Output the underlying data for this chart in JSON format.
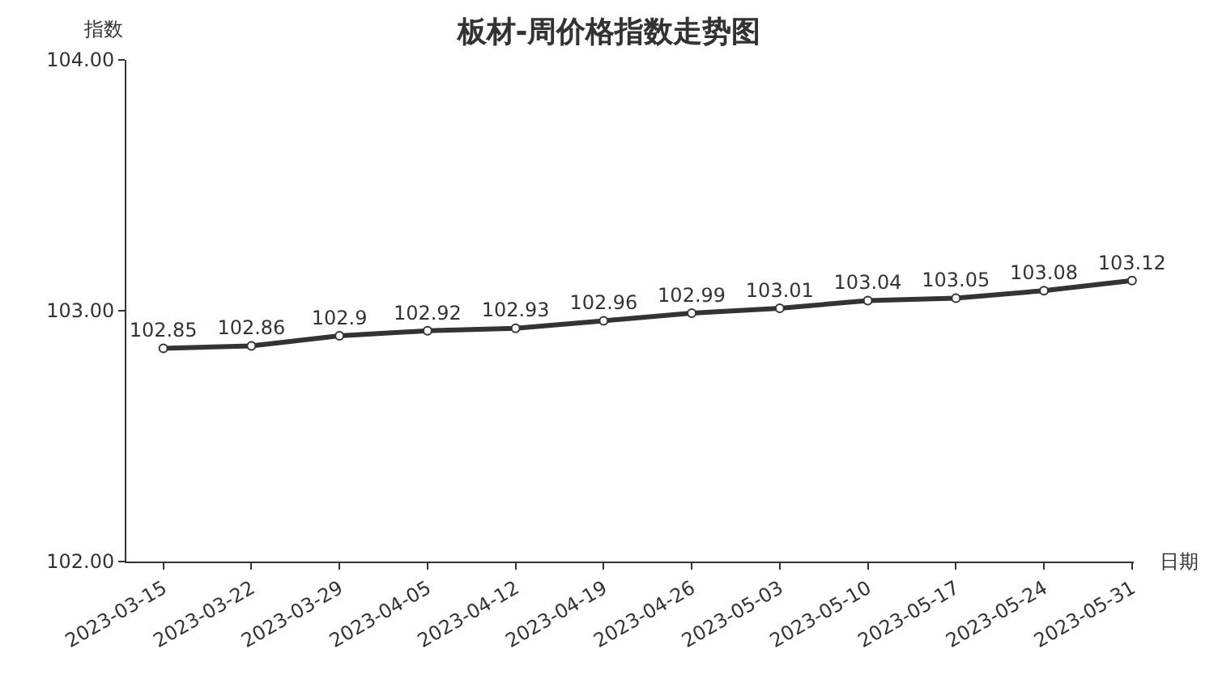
{
  "chart_data": {
    "type": "line",
    "title": "板材-周价格指数走势图",
    "xlabel": "日期",
    "ylabel": "指数",
    "categories": [
      "2023-03-15",
      "2023-03-22",
      "2023-03-29",
      "2023-04-05",
      "2023-04-12",
      "2023-04-19",
      "2023-04-26",
      "2023-05-03",
      "2023-05-10",
      "2023-05-17",
      "2023-05-24",
      "2023-05-31"
    ],
    "series": [
      {
        "color": "#333333",
        "values": [
          102.85,
          102.86,
          102.9,
          102.92,
          102.93,
          102.96,
          102.99,
          103.01,
          103.04,
          103.05,
          103.08,
          103.12
        ]
      }
    ],
    "ylim": [
      102,
      104
    ],
    "yticks": [
      {
        "value": 102,
        "label": "102.00"
      },
      {
        "value": 103,
        "label": "103.00"
      },
      {
        "value": 104,
        "label": "104.00"
      }
    ],
    "data_labels": true,
    "marker": "circle",
    "line_style": "solid"
  }
}
